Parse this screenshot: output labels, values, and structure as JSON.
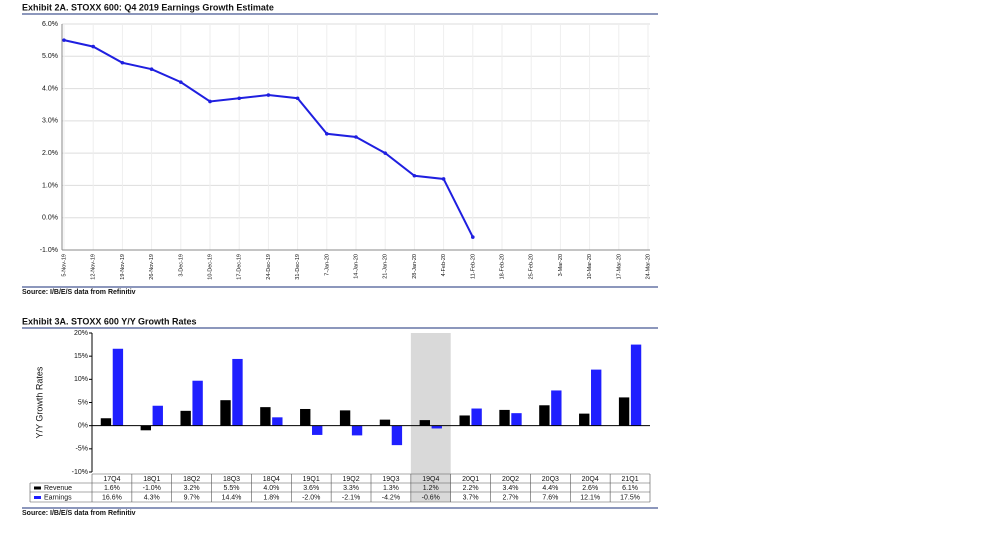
{
  "chart_data": [
    {
      "type": "line",
      "title": "Exhibit 2A.  STOXX 600: Q4 2019 Earnings Growth Estimate",
      "source": "Source: I/B/E/S data from Refinitiv",
      "categories": [
        "5-Nov-19",
        "12-Nov-19",
        "19-Nov-19",
        "26-Nov-19",
        "3-Dec-19",
        "10-Dec-19",
        "17-Dec-19",
        "24-Dec-19",
        "31-Dec-19",
        "7-Jan-20",
        "14-Jan-20",
        "21-Jan-20",
        "28-Jan-20",
        "4-Feb-20",
        "11-Feb-20",
        "18-Feb-20",
        "25-Feb-20",
        "3-Mar-20",
        "10-Mar-20",
        "17-Mar-20",
        "24-Mar-20"
      ],
      "values": [
        5.5,
        5.3,
        4.8,
        4.6,
        4.2,
        3.6,
        3.7,
        3.8,
        3.7,
        2.6,
        2.5,
        2.0,
        1.3,
        1.2,
        -0.6,
        null,
        null,
        null,
        null,
        null,
        null
      ],
      "color": "#1f1fe0",
      "grid": true,
      "ylim": [
        -1,
        6
      ],
      "yticks": [
        {
          "value": 6,
          "label": "6.0%"
        },
        {
          "value": 5,
          "label": "5.0%"
        },
        {
          "value": 4,
          "label": "4.0%"
        },
        {
          "value": 3,
          "label": "3.0%"
        },
        {
          "value": 2,
          "label": "2.0%"
        },
        {
          "value": 1,
          "label": "1.0%"
        },
        {
          "value": 0,
          "label": "0.0%"
        },
        {
          "value": -1,
          "label": "-1.0%"
        }
      ]
    },
    {
      "type": "bar",
      "title": "Exhibit 3A.  STOXX 600 Y/Y Growth Rates",
      "source": "Source: I/B/E/S data from Refinitiv",
      "y_label": "Y/Y Growth Rates",
      "grid": false,
      "highlight": "19Q4",
      "categories": [
        "17Q4",
        "18Q1",
        "18Q2",
        "18Q3",
        "18Q4",
        "19Q1",
        "19Q2",
        "19Q3",
        "19Q4",
        "20Q1",
        "20Q2",
        "20Q3",
        "20Q4",
        "21Q1"
      ],
      "series": [
        {
          "name": "Revenue",
          "color": "#000000",
          "values": [
            1.6,
            -1.0,
            3.2,
            5.5,
            4.0,
            3.6,
            3.3,
            1.3,
            1.2,
            2.2,
            3.4,
            4.4,
            2.6,
            6.1
          ],
          "value_labels": [
            "1.6%",
            "-1.0%",
            "3.2%",
            "5.5%",
            "4.0%",
            "3.6%",
            "3.3%",
            "1.3%",
            "1.2%",
            "2.2%",
            "3.4%",
            "4.4%",
            "2.6%",
            "6.1%"
          ]
        },
        {
          "name": "Earnings",
          "color": "#1f1fff",
          "values": [
            16.6,
            4.3,
            9.7,
            14.4,
            1.8,
            -2.0,
            -2.1,
            -4.2,
            -0.6,
            3.7,
            2.7,
            7.6,
            12.1,
            17.5
          ],
          "value_labels": [
            "16.6%",
            "4.3%",
            "9.7%",
            "14.4%",
            "1.8%",
            "-2.0%",
            "-2.1%",
            "-4.2%",
            "-0.6%",
            "3.7%",
            "2.7%",
            "7.6%",
            "12.1%",
            "17.5%"
          ]
        }
      ],
      "ylim": [
        -10,
        20
      ],
      "yticks": [
        {
          "value": 20,
          "label": "20%"
        },
        {
          "value": 15,
          "label": "15%"
        },
        {
          "value": 10,
          "label": "10%"
        },
        {
          "value": 5,
          "label": "5%"
        },
        {
          "value": 0,
          "label": "0%"
        },
        {
          "value": -5,
          "label": "-5%"
        },
        {
          "value": -10,
          "label": "-10%"
        }
      ]
    }
  ]
}
